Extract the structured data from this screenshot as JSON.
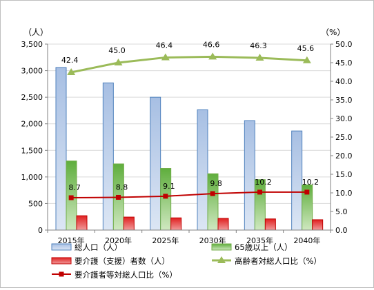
{
  "chart_data": {
    "type": "bar",
    "categories": [
      "2015年",
      "2020年",
      "2025年",
      "2030年",
      "2035年",
      "2040年"
    ],
    "y_left": {
      "unit": "（人）",
      "range": [
        0,
        3500
      ],
      "ticks": [
        "0",
        "500",
        "1,000",
        "1,500",
        "2,000",
        "2,500",
        "3,000",
        "3,500"
      ]
    },
    "y_right": {
      "unit": "（%）",
      "range": [
        0,
        50
      ],
      "ticks": [
        "0.0",
        "5.0",
        "10.0",
        "15.0",
        "20.0",
        "25.0",
        "30.0",
        "35.0",
        "40.0",
        "45.0",
        "50.0"
      ]
    },
    "bar_series": [
      {
        "name": "総人口（人）",
        "values": [
          3060,
          2770,
          2500,
          2265,
          2060,
          1865
        ],
        "color": "#4f81bd"
      },
      {
        "name": "65歳以上（人）",
        "values": [
          1300,
          1245,
          1160,
          1060,
          950,
          850
        ],
        "color": "#70ad47"
      },
      {
        "name": "要介護（支援）者数（人）",
        "values": [
          270,
          245,
          230,
          220,
          210,
          195
        ],
        "color": "#c00000"
      }
    ],
    "line_series": [
      {
        "name": "高齢者対総人口比（%）",
        "values": [
          42.4,
          45.0,
          46.4,
          46.6,
          46.3,
          45.6
        ],
        "labels": [
          "42.4",
          "45.0",
          "46.4",
          "46.6",
          "46.3",
          "45.6"
        ],
        "color": "#9bbb59",
        "marker": "triangle"
      },
      {
        "name": "要介護者等対総人口比（%）",
        "values": [
          8.7,
          8.8,
          9.1,
          9.8,
          10.2,
          10.2
        ],
        "labels": [
          "8.7",
          "8.8",
          "9.1",
          "9.8",
          "10.2",
          "10.2"
        ],
        "color": "#c00000",
        "marker": "square"
      }
    ],
    "grid": true,
    "legend_position": "bottom"
  }
}
